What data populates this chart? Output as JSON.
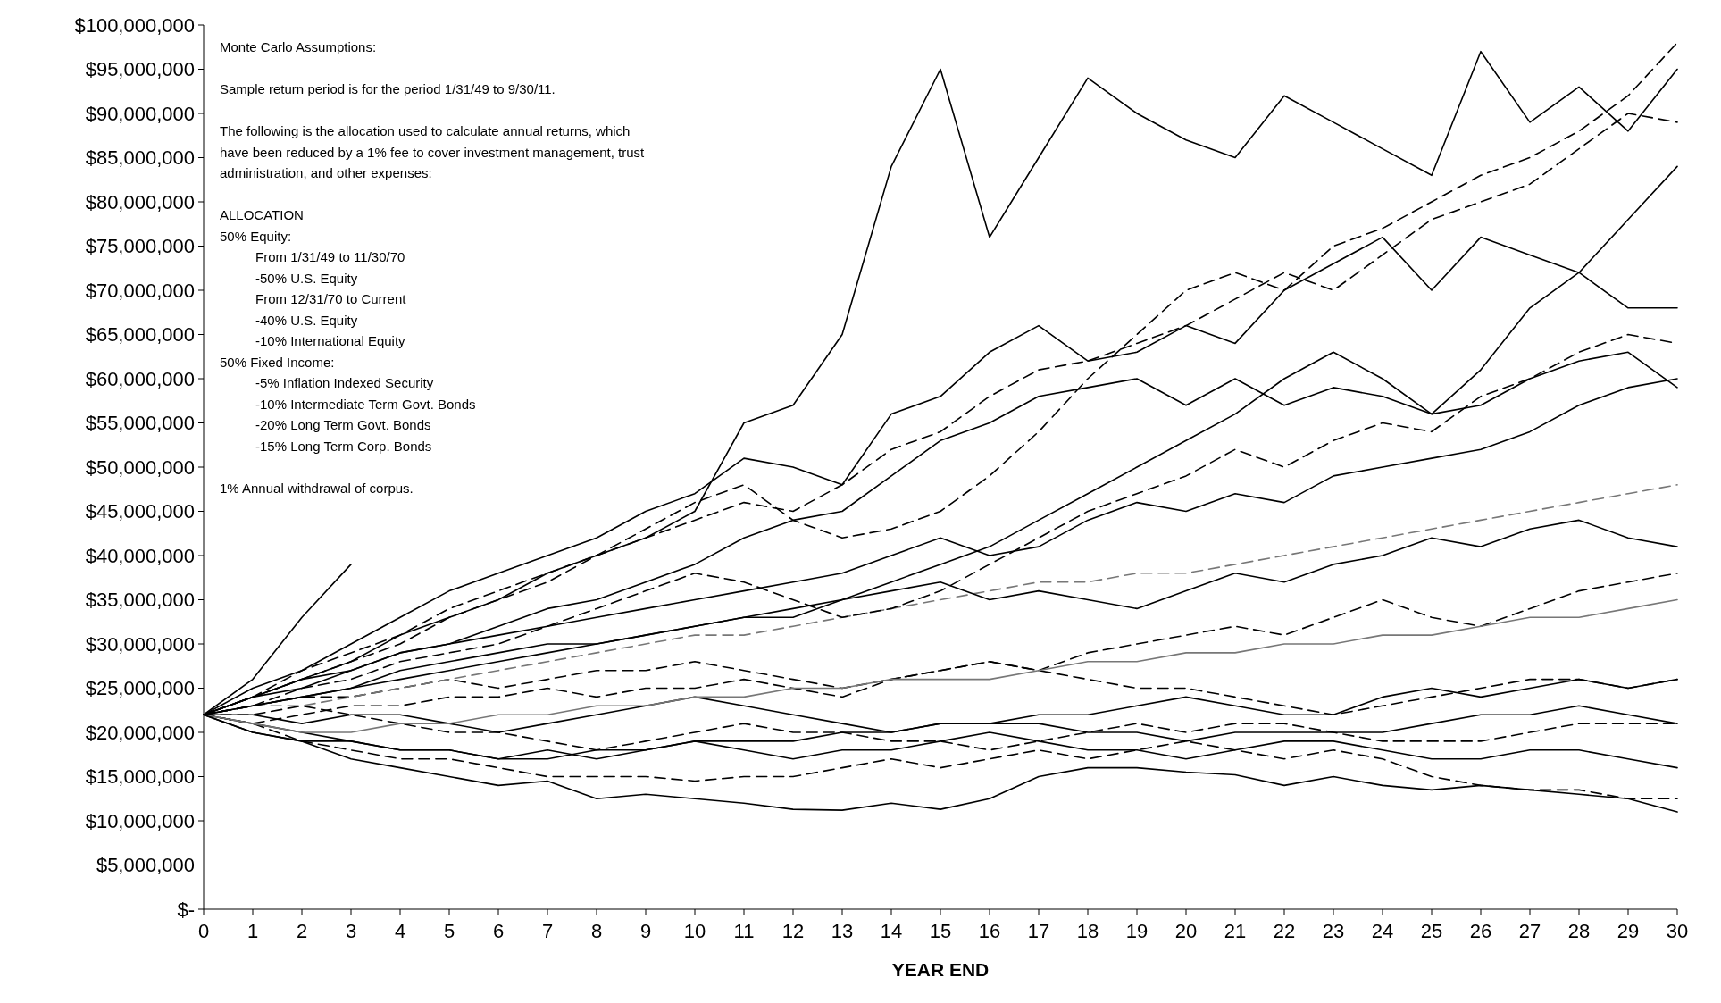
{
  "chart_data": {
    "type": "line",
    "xlabel": "YEAR END",
    "x": [
      0,
      1,
      2,
      3,
      4,
      5,
      6,
      7,
      8,
      9,
      10,
      11,
      12,
      13,
      14,
      15,
      16,
      17,
      18,
      19,
      20,
      21,
      22,
      23,
      24,
      25,
      26,
      27,
      28,
      29,
      30
    ],
    "xlim": [
      0,
      30
    ],
    "xticks": [
      0,
      1,
      2,
      3,
      4,
      5,
      6,
      7,
      8,
      9,
      10,
      11,
      12,
      13,
      14,
      15,
      16,
      17,
      18,
      19,
      20,
      21,
      22,
      23,
      24,
      25,
      26,
      27,
      28,
      29,
      30
    ],
    "ylim": [
      0,
      100000000
    ],
    "yticks": [
      {
        "value": 0,
        "label": "$-"
      },
      {
        "value": 5000000,
        "label": "$5,000,000"
      },
      {
        "value": 10000000,
        "label": "$10,000,000"
      },
      {
        "value": 15000000,
        "label": "$15,000,000"
      },
      {
        "value": 20000000,
        "label": "$20,000,000"
      },
      {
        "value": 25000000,
        "label": "$25,000,000"
      },
      {
        "value": 30000000,
        "label": "$30,000,000"
      },
      {
        "value": 35000000,
        "label": "$35,000,000"
      },
      {
        "value": 40000000,
        "label": "$40,000,000"
      },
      {
        "value": 45000000,
        "label": "$45,000,000"
      },
      {
        "value": 50000000,
        "label": "$50,000,000"
      },
      {
        "value": 55000000,
        "label": "$55,000,000"
      },
      {
        "value": 60000000,
        "label": "$60,000,000"
      },
      {
        "value": 65000000,
        "label": "$65,000,000"
      },
      {
        "value": 70000000,
        "label": "$70,000,000"
      },
      {
        "value": 75000000,
        "label": "$75,000,000"
      },
      {
        "value": 80000000,
        "label": "$80,000,000"
      },
      {
        "value": 85000000,
        "label": "$85,000,000"
      },
      {
        "value": 90000000,
        "label": "$90,000,000"
      },
      {
        "value": 95000000,
        "label": "$95,000,000"
      },
      {
        "value": 100000000,
        "label": "$100,000,000"
      }
    ],
    "grid": false,
    "marker": "none",
    "annotations": [
      "Monte Carlo Assumptions:",
      "Sample return period is for the period 1/31/49 to 9/30/11.",
      "The following is the allocation used to calculate annual returns, which\nhave been reduced by a 1% fee to cover investment management, trust\nadministration, and other expenses:",
      "ALLOCATION\n50% Equity:\n      From 1/31/49 to 11/30/70\n      -50% U.S. Equity\n      From 12/31/70 to Current\n      -40% U.S. Equity\n      -10% International Equity\n50% Fixed Income:\n      -5% Inflation Indexed Security\n      -10% Intermediate Term Govt. Bonds\n      -20% Long Term Govt. Bonds\n      -15% Long Term Corp. Bonds",
      "1% Annual withdrawal of corpus."
    ],
    "series": [
      {
        "color": "#000000",
        "line_style": "solid",
        "values": [
          22000000,
          24000000,
          26000000,
          28000000,
          31000000,
          33000000,
          35000000,
          38000000,
          40000000,
          42000000,
          45000000,
          55000000,
          57000000,
          65000000,
          84000000,
          95000000,
          76000000,
          85000000,
          94000000,
          90000000,
          87000000,
          85000000,
          92000000,
          89000000,
          86000000,
          83000000,
          97000000,
          89000000,
          93000000,
          88000000,
          95000000
        ]
      },
      {
        "color": "#000000",
        "line_style": "solid",
        "values": [
          22000000,
          26000000,
          33000000,
          39000000,
          null,
          null,
          null,
          null,
          null,
          null,
          null,
          null,
          null,
          null,
          null,
          null,
          null,
          null,
          null,
          null,
          null,
          null,
          null,
          null,
          null,
          null,
          null,
          null,
          null,
          null,
          null
        ]
      },
      {
        "color": "#000000",
        "line_style": "solid",
        "values": [
          22000000,
          20000000,
          19000000,
          17000000,
          16000000,
          15000000,
          14000000,
          14500000,
          12500000,
          13000000,
          12500000,
          12000000,
          11300000,
          11200000,
          12000000,
          11300000,
          12500000,
          15000000,
          16000000,
          16000000,
          15500000,
          15200000,
          14000000,
          15000000,
          14000000,
          13500000,
          14000000,
          13500000,
          13000000,
          12500000,
          11000000
        ]
      },
      {
        "color": "#000000",
        "line_style": "dashed",
        "values": [
          22000000,
          21000000,
          19000000,
          18000000,
          17000000,
          17000000,
          16000000,
          15000000,
          15000000,
          15000000,
          14500000,
          15000000,
          15000000,
          16000000,
          17000000,
          16000000,
          17000000,
          18000000,
          17000000,
          18000000,
          19000000,
          18000000,
          17000000,
          18000000,
          17000000,
          15000000,
          14000000,
          13500000,
          13500000,
          12500000,
          12500000
        ]
      },
      {
        "color": "#000000",
        "line_style": "solid",
        "values": [
          22000000,
          21000000,
          20000000,
          19000000,
          18000000,
          18000000,
          17000000,
          17000000,
          18000000,
          18000000,
          19000000,
          19000000,
          19000000,
          20000000,
          20000000,
          21000000,
          21000000,
          21000000,
          20000000,
          20000000,
          19000000,
          20000000,
          20000000,
          20000000,
          20000000,
          21000000,
          22000000,
          22000000,
          23000000,
          22000000,
          21000000
        ]
      },
      {
        "color": "#000000",
        "line_style": "dashed",
        "values": [
          22000000,
          23000000,
          24000000,
          24000000,
          25000000,
          26000000,
          25000000,
          26000000,
          27000000,
          27000000,
          28000000,
          27000000,
          26000000,
          25000000,
          26000000,
          27000000,
          28000000,
          27000000,
          26000000,
          25000000,
          25000000,
          24000000,
          23000000,
          22000000,
          23000000,
          24000000,
          25000000,
          26000000,
          26000000,
          25000000,
          26000000
        ]
      },
      {
        "color": "#000000",
        "line_style": "solid",
        "values": [
          22000000,
          24000000,
          25000000,
          27000000,
          29000000,
          30000000,
          31000000,
          32000000,
          33000000,
          34000000,
          35000000,
          36000000,
          37000000,
          38000000,
          40000000,
          42000000,
          40000000,
          41000000,
          44000000,
          46000000,
          45000000,
          47000000,
          46000000,
          49000000,
          50000000,
          51000000,
          52000000,
          54000000,
          57000000,
          59000000,
          60000000
        ]
      },
      {
        "color": "#000000",
        "line_style": "dashed",
        "values": [
          22000000,
          24000000,
          27000000,
          29000000,
          31000000,
          34000000,
          36000000,
          38000000,
          40000000,
          42000000,
          44000000,
          46000000,
          45000000,
          48000000,
          52000000,
          54000000,
          58000000,
          61000000,
          62000000,
          64000000,
          66000000,
          69000000,
          72000000,
          70000000,
          74000000,
          78000000,
          80000000,
          82000000,
          86000000,
          90000000,
          89000000
        ]
      },
      {
        "color": "#000000",
        "line_style": "solid",
        "values": [
          22000000,
          25000000,
          27000000,
          30000000,
          33000000,
          36000000,
          38000000,
          40000000,
          42000000,
          45000000,
          47000000,
          51000000,
          50000000,
          48000000,
          56000000,
          58000000,
          63000000,
          66000000,
          62000000,
          63000000,
          66000000,
          64000000,
          70000000,
          73000000,
          76000000,
          70000000,
          76000000,
          74000000,
          72000000,
          68000000,
          68000000
        ]
      },
      {
        "color": "#777777",
        "line_style": "dashed",
        "values": [
          22000000,
          23000000,
          23000000,
          24000000,
          25000000,
          26000000,
          27000000,
          28000000,
          29000000,
          30000000,
          31000000,
          31000000,
          32000000,
          33000000,
          34000000,
          35000000,
          36000000,
          37000000,
          37000000,
          38000000,
          38000000,
          39000000,
          40000000,
          41000000,
          42000000,
          43000000,
          44000000,
          45000000,
          46000000,
          47000000,
          48000000
        ]
      },
      {
        "color": "#000000",
        "line_style": "solid",
        "values": [
          22000000,
          23000000,
          24000000,
          25000000,
          26000000,
          27000000,
          28000000,
          29000000,
          30000000,
          31000000,
          32000000,
          33000000,
          33000000,
          35000000,
          37000000,
          39000000,
          41000000,
          44000000,
          47000000,
          50000000,
          53000000,
          56000000,
          60000000,
          63000000,
          60000000,
          56000000,
          61000000,
          68000000,
          72000000,
          78000000,
          84000000
        ]
      },
      {
        "color": "#000000",
        "line_style": "dashed",
        "values": [
          22000000,
          21000000,
          22000000,
          23000000,
          23000000,
          24000000,
          24000000,
          25000000,
          24000000,
          25000000,
          25000000,
          26000000,
          25000000,
          24000000,
          26000000,
          27000000,
          28000000,
          27000000,
          29000000,
          30000000,
          31000000,
          32000000,
          31000000,
          33000000,
          35000000,
          33000000,
          32000000,
          34000000,
          36000000,
          37000000,
          38000000
        ]
      },
      {
        "color": "#000000",
        "line_style": "solid",
        "values": [
          22000000,
          22000000,
          21000000,
          22000000,
          22000000,
          21000000,
          20000000,
          21000000,
          22000000,
          23000000,
          24000000,
          23000000,
          22000000,
          21000000,
          20000000,
          21000000,
          21000000,
          22000000,
          22000000,
          23000000,
          24000000,
          23000000,
          22000000,
          22000000,
          24000000,
          25000000,
          24000000,
          25000000,
          26000000,
          25000000,
          26000000
        ]
      },
      {
        "color": "#000000",
        "line_style": "dashed",
        "values": [
          22000000,
          23000000,
          25000000,
          26000000,
          28000000,
          29000000,
          30000000,
          32000000,
          34000000,
          36000000,
          38000000,
          37000000,
          35000000,
          33000000,
          34000000,
          36000000,
          39000000,
          42000000,
          45000000,
          47000000,
          49000000,
          52000000,
          50000000,
          53000000,
          55000000,
          54000000,
          58000000,
          60000000,
          63000000,
          65000000,
          64000000
        ]
      },
      {
        "color": "#000000",
        "line_style": "solid",
        "values": [
          22000000,
          24000000,
          26000000,
          27000000,
          29000000,
          30000000,
          32000000,
          34000000,
          35000000,
          37000000,
          39000000,
          42000000,
          44000000,
          45000000,
          49000000,
          53000000,
          55000000,
          58000000,
          59000000,
          60000000,
          57000000,
          60000000,
          57000000,
          59000000,
          58000000,
          56000000,
          57000000,
          60000000,
          62000000,
          63000000,
          59000000
        ]
      },
      {
        "color": "#000000",
        "line_style": "dashed",
        "values": [
          22000000,
          22000000,
          23000000,
          22000000,
          21000000,
          20000000,
          20000000,
          19000000,
          18000000,
          19000000,
          20000000,
          21000000,
          20000000,
          20000000,
          19000000,
          19000000,
          18000000,
          19000000,
          20000000,
          21000000,
          20000000,
          21000000,
          21000000,
          20000000,
          19000000,
          19000000,
          19000000,
          20000000,
          21000000,
          21000000,
          21000000
        ]
      },
      {
        "color": "#777777",
        "line_style": "solid",
        "values": [
          22000000,
          21000000,
          20000000,
          20000000,
          21000000,
          21000000,
          22000000,
          22000000,
          23000000,
          23000000,
          24000000,
          24000000,
          25000000,
          25000000,
          26000000,
          26000000,
          26000000,
          27000000,
          28000000,
          28000000,
          29000000,
          29000000,
          30000000,
          30000000,
          31000000,
          31000000,
          32000000,
          33000000,
          33000000,
          34000000,
          35000000
        ]
      },
      {
        "color": "#000000",
        "line_style": "dashed",
        "values": [
          22000000,
          24000000,
          26000000,
          28000000,
          30000000,
          33000000,
          35000000,
          37000000,
          40000000,
          43000000,
          46000000,
          48000000,
          44000000,
          42000000,
          43000000,
          45000000,
          49000000,
          54000000,
          60000000,
          65000000,
          70000000,
          72000000,
          70000000,
          75000000,
          77000000,
          80000000,
          83000000,
          85000000,
          88000000,
          92000000,
          98000000
        ]
      },
      {
        "color": "#000000",
        "line_style": "solid",
        "values": [
          22000000,
          23000000,
          24000000,
          25000000,
          27000000,
          28000000,
          29000000,
          30000000,
          30000000,
          31000000,
          32000000,
          33000000,
          34000000,
          35000000,
          36000000,
          37000000,
          35000000,
          36000000,
          35000000,
          34000000,
          36000000,
          38000000,
          37000000,
          39000000,
          40000000,
          42000000,
          41000000,
          43000000,
          44000000,
          42000000,
          41000000
        ]
      },
      {
        "color": "#000000",
        "line_style": "solid",
        "values": [
          22000000,
          20000000,
          19000000,
          19000000,
          18000000,
          18000000,
          17000000,
          18000000,
          17000000,
          18000000,
          19000000,
          18000000,
          17000000,
          18000000,
          18000000,
          19000000,
          20000000,
          19000000,
          18000000,
          18000000,
          17000000,
          18000000,
          19000000,
          19000000,
          18000000,
          17000000,
          17000000,
          18000000,
          18000000,
          17000000,
          16000000
        ]
      }
    ]
  }
}
